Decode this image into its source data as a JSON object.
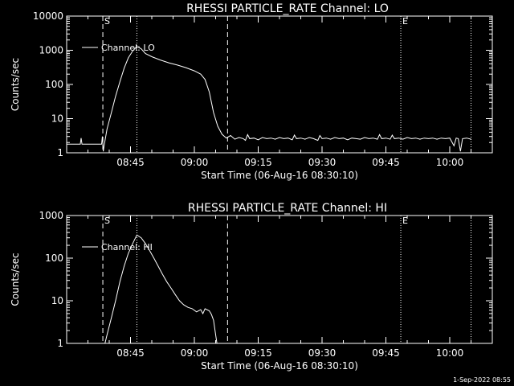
{
  "footer": {
    "timestamp": "1-Sep-2022 08:55"
  },
  "chart_data": [
    {
      "type": "line",
      "title": "RHESSI PARTICLE_RATE Channel: LO",
      "xlabel": "Start Time (06-Aug-16 08:30:10)",
      "ylabel": "Counts/sec",
      "y_scale": "log",
      "xlim_minutes": [
        0,
        100
      ],
      "ylim": [
        1,
        10000
      ],
      "x_ticks": [
        {
          "min": 15,
          "label": "08:45"
        },
        {
          "min": 30,
          "label": "09:00"
        },
        {
          "min": 45,
          "label": "09:15"
        },
        {
          "min": 60,
          "label": "09:30"
        },
        {
          "min": 75,
          "label": "09:45"
        },
        {
          "min": 90,
          "label": "10:00"
        }
      ],
      "y_ticks": [
        {
          "v": 1,
          "label": "1"
        },
        {
          "v": 10,
          "label": "10"
        },
        {
          "v": 100,
          "label": "100"
        },
        {
          "v": 1000,
          "label": "1000"
        },
        {
          "v": 10000,
          "label": "10000"
        }
      ],
      "legend": {
        "label": "Channel: LO",
        "placement": "top-left"
      },
      "markers": [
        {
          "min": 8.5,
          "style": "dashed",
          "label": "S"
        },
        {
          "min": 37.8,
          "style": "dashed",
          "label": ""
        },
        {
          "min": 16.5,
          "style": "dotted",
          "label": ""
        },
        {
          "min": 78.5,
          "style": "dotted",
          "label": "E"
        },
        {
          "min": 95,
          "style": "dotted",
          "label": ""
        }
      ],
      "grid": false,
      "series": [
        {
          "points": [
            [
              0,
              1.8
            ],
            [
              3.2,
              1.8
            ],
            [
              3.4,
              2.7
            ],
            [
              3.6,
              1.8
            ],
            [
              8.2,
              1.8
            ],
            [
              8.4,
              3
            ],
            [
              8.6,
              1.1
            ],
            [
              8.8,
              1.6
            ],
            [
              9.5,
              5
            ],
            [
              10.5,
              15
            ],
            [
              11.5,
              45
            ],
            [
              12.5,
              120
            ],
            [
              13.5,
              300
            ],
            [
              14.5,
              600
            ],
            [
              15.5,
              950
            ],
            [
              16.5,
              1300
            ],
            [
              17.5,
              1100
            ],
            [
              18.5,
              800
            ],
            [
              20,
              650
            ],
            [
              22,
              520
            ],
            [
              24,
              430
            ],
            [
              26,
              370
            ],
            [
              28,
              310
            ],
            [
              30,
              250
            ],
            [
              31.5,
              200
            ],
            [
              32.5,
              140
            ],
            [
              33.5,
              60
            ],
            [
              34.5,
              15
            ],
            [
              35.5,
              6
            ],
            [
              36.5,
              3.5
            ],
            [
              37.5,
              2.7
            ],
            [
              38.5,
              3.2
            ],
            [
              39.5,
              2.5
            ],
            [
              40.5,
              2.8
            ],
            [
              41.5,
              2.6
            ],
            [
              42,
              2.3
            ],
            [
              42.5,
              3.4
            ],
            [
              43,
              2.6
            ],
            [
              44,
              2.7
            ],
            [
              45,
              2.4
            ],
            [
              46,
              2.8
            ],
            [
              47,
              2.6
            ],
            [
              48,
              2.7
            ],
            [
              49,
              2.5
            ],
            [
              50,
              2.8
            ],
            [
              51,
              2.6
            ],
            [
              52,
              2.7
            ],
            [
              53,
              2.4
            ],
            [
              53.5,
              3.3
            ],
            [
              54,
              2.6
            ],
            [
              55,
              2.7
            ],
            [
              56,
              2.5
            ],
            [
              57,
              2.8
            ],
            [
              58,
              2.6
            ],
            [
              59,
              2.3
            ],
            [
              59.5,
              3.2
            ],
            [
              60,
              2.6
            ],
            [
              61,
              2.7
            ],
            [
              62,
              2.5
            ],
            [
              63,
              2.8
            ],
            [
              64,
              2.6
            ],
            [
              65,
              2.7
            ],
            [
              66,
              2.4
            ],
            [
              67,
              2.7
            ],
            [
              68,
              2.6
            ],
            [
              69,
              2.5
            ],
            [
              70,
              2.8
            ],
            [
              71,
              2.6
            ],
            [
              72,
              2.7
            ],
            [
              73,
              2.5
            ],
            [
              73.5,
              3.4
            ],
            [
              74,
              2.6
            ],
            [
              75,
              2.7
            ],
            [
              76,
              2.5
            ],
            [
              76.5,
              3.3
            ],
            [
              77,
              2.6
            ],
            [
              78,
              2.7
            ],
            [
              79,
              2.5
            ],
            [
              80,
              2.8
            ],
            [
              81,
              2.6
            ],
            [
              82,
              2.7
            ],
            [
              83,
              2.5
            ],
            [
              84,
              2.7
            ],
            [
              85,
              2.6
            ],
            [
              86,
              2.7
            ],
            [
              87,
              2.5
            ],
            [
              88,
              2.7
            ],
            [
              89,
              2.6
            ],
            [
              90,
              2.7
            ],
            [
              91,
              1.6
            ],
            [
              91.5,
              2.7
            ],
            [
              92,
              2.6
            ],
            [
              92.5,
              1.1
            ],
            [
              93,
              2.6
            ],
            [
              94,
              2.7
            ],
            [
              95,
              2.5
            ]
          ]
        }
      ]
    },
    {
      "type": "line",
      "title": "RHESSI PARTICLE_RATE Channel: HI",
      "xlabel": "Start Time (06-Aug-16 08:30:10)",
      "ylabel": "Counts/sec",
      "y_scale": "log",
      "xlim_minutes": [
        0,
        100
      ],
      "ylim": [
        1,
        1000
      ],
      "x_ticks": [
        {
          "min": 15,
          "label": "08:45"
        },
        {
          "min": 30,
          "label": "09:00"
        },
        {
          "min": 45,
          "label": "09:15"
        },
        {
          "min": 60,
          "label": "09:30"
        },
        {
          "min": 75,
          "label": "09:45"
        },
        {
          "min": 90,
          "label": "10:00"
        }
      ],
      "y_ticks": [
        {
          "v": 1,
          "label": "1"
        },
        {
          "v": 10,
          "label": "10"
        },
        {
          "v": 100,
          "label": "100"
        },
        {
          "v": 1000,
          "label": "1000"
        }
      ],
      "legend": {
        "label": "Channel: HI",
        "placement": "top-left"
      },
      "markers": [
        {
          "min": 8.5,
          "style": "dashed",
          "label": "S"
        },
        {
          "min": 37.8,
          "style": "dashed",
          "label": ""
        },
        {
          "min": 16.5,
          "style": "dotted",
          "label": ""
        },
        {
          "min": 78.5,
          "style": "dotted",
          "label": "E"
        },
        {
          "min": 95,
          "style": "dotted",
          "label": ""
        }
      ],
      "grid": false,
      "series": [
        {
          "points": [
            [
              9,
              1
            ],
            [
              9.5,
              1.6
            ],
            [
              10.5,
              4
            ],
            [
              11.5,
              10
            ],
            [
              12.5,
              28
            ],
            [
              13.5,
              65
            ],
            [
              14.5,
              130
            ],
            [
              15.5,
              220
            ],
            [
              16.5,
              350
            ],
            [
              17.5,
              300
            ],
            [
              18.5,
              220
            ],
            [
              19.5,
              150
            ],
            [
              20.5,
              100
            ],
            [
              21.5,
              65
            ],
            [
              22.5,
              42
            ],
            [
              23.5,
              28
            ],
            [
              24.5,
              20
            ],
            [
              25.5,
              14
            ],
            [
              26.5,
              10
            ],
            [
              27.5,
              8
            ],
            [
              28.5,
              7
            ],
            [
              29.5,
              6.5
            ],
            [
              30.5,
              5.5
            ],
            [
              31.5,
              6.2
            ],
            [
              32,
              5
            ],
            [
              32.5,
              6.5
            ],
            [
              33.5,
              5.8
            ],
            [
              34,
              4.8
            ],
            [
              34.5,
              3.5
            ],
            [
              35,
              1.6
            ],
            [
              35.3,
              1
            ]
          ]
        }
      ]
    }
  ]
}
